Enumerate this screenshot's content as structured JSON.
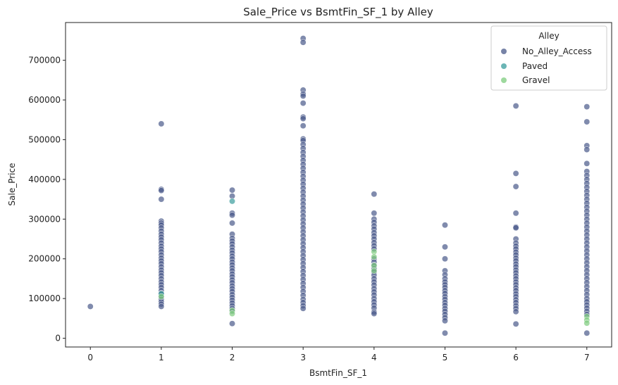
{
  "chart_data": {
    "type": "scatter",
    "title": "Sale_Price vs BsmtFin_SF_1 by Alley",
    "xlabel": "BsmtFin_SF_1",
    "ylabel": "Sale_Price",
    "xlim": [
      -0.35,
      7.35
    ],
    "ylim": [
      -22000,
      795000
    ],
    "x_ticks": [
      0,
      1,
      2,
      3,
      4,
      5,
      6,
      7
    ],
    "y_ticks": [
      0,
      100000,
      200000,
      300000,
      400000,
      500000,
      600000,
      700000
    ],
    "grid": false,
    "legend": {
      "title": "Alley",
      "placement": "top-right"
    },
    "series": [
      {
        "name": "No_Alley_Access",
        "color": "#4a5a8a",
        "points": [
          [
            0,
            80000
          ],
          [
            1,
            540000
          ],
          [
            1,
            375000
          ],
          [
            1,
            372000
          ],
          [
            1,
            350000
          ],
          [
            1,
            295000
          ],
          [
            1,
            290000
          ],
          [
            1,
            285000
          ],
          [
            1,
            278000
          ],
          [
            1,
            270000
          ],
          [
            1,
            262000
          ],
          [
            1,
            255000
          ],
          [
            1,
            248000
          ],
          [
            1,
            240000
          ],
          [
            1,
            232000
          ],
          [
            1,
            225000
          ],
          [
            1,
            218000
          ],
          [
            1,
            210000
          ],
          [
            1,
            202000
          ],
          [
            1,
            195000
          ],
          [
            1,
            188000
          ],
          [
            1,
            180000
          ],
          [
            1,
            172000
          ],
          [
            1,
            165000
          ],
          [
            1,
            158000
          ],
          [
            1,
            150000
          ],
          [
            1,
            142000
          ],
          [
            1,
            135000
          ],
          [
            1,
            128000
          ],
          [
            1,
            120000
          ],
          [
            1,
            113000
          ],
          [
            1,
            105000
          ],
          [
            1,
            98000
          ],
          [
            1,
            92000
          ],
          [
            1,
            86000
          ],
          [
            1,
            80000
          ],
          [
            2,
            373000
          ],
          [
            2,
            358000
          ],
          [
            2,
            315000
          ],
          [
            2,
            310000
          ],
          [
            2,
            290000
          ],
          [
            2,
            262000
          ],
          [
            2,
            252000
          ],
          [
            2,
            245000
          ],
          [
            2,
            238000
          ],
          [
            2,
            230000
          ],
          [
            2,
            222000
          ],
          [
            2,
            215000
          ],
          [
            2,
            207000
          ],
          [
            2,
            200000
          ],
          [
            2,
            192000
          ],
          [
            2,
            185000
          ],
          [
            2,
            177000
          ],
          [
            2,
            170000
          ],
          [
            2,
            162000
          ],
          [
            2,
            155000
          ],
          [
            2,
            147000
          ],
          [
            2,
            140000
          ],
          [
            2,
            132000
          ],
          [
            2,
            125000
          ],
          [
            2,
            118000
          ],
          [
            2,
            110000
          ],
          [
            2,
            103000
          ],
          [
            2,
            96000
          ],
          [
            2,
            89000
          ],
          [
            2,
            82000
          ],
          [
            2,
            75000
          ],
          [
            2,
            68000
          ],
          [
            2,
            37000
          ],
          [
            3,
            755000
          ],
          [
            3,
            745000
          ],
          [
            3,
            625000
          ],
          [
            3,
            615000
          ],
          [
            3,
            610000
          ],
          [
            3,
            592000
          ],
          [
            3,
            557000
          ],
          [
            3,
            553000
          ],
          [
            3,
            535000
          ],
          [
            3,
            502000
          ],
          [
            3,
            498000
          ],
          [
            3,
            488000
          ],
          [
            3,
            478000
          ],
          [
            3,
            468000
          ],
          [
            3,
            458000
          ],
          [
            3,
            448000
          ],
          [
            3,
            438000
          ],
          [
            3,
            428000
          ],
          [
            3,
            418000
          ],
          [
            3,
            408000
          ],
          [
            3,
            398000
          ],
          [
            3,
            388000
          ],
          [
            3,
            378000
          ],
          [
            3,
            368000
          ],
          [
            3,
            358000
          ],
          [
            3,
            348000
          ],
          [
            3,
            338000
          ],
          [
            3,
            328000
          ],
          [
            3,
            318000
          ],
          [
            3,
            308000
          ],
          [
            3,
            298000
          ],
          [
            3,
            288000
          ],
          [
            3,
            278000
          ],
          [
            3,
            268000
          ],
          [
            3,
            258000
          ],
          [
            3,
            248000
          ],
          [
            3,
            238000
          ],
          [
            3,
            228000
          ],
          [
            3,
            218000
          ],
          [
            3,
            208000
          ],
          [
            3,
            198000
          ],
          [
            3,
            188000
          ],
          [
            3,
            178000
          ],
          [
            3,
            168000
          ],
          [
            3,
            158000
          ],
          [
            3,
            148000
          ],
          [
            3,
            138000
          ],
          [
            3,
            128000
          ],
          [
            3,
            118000
          ],
          [
            3,
            108000
          ],
          [
            3,
            98000
          ],
          [
            3,
            90000
          ],
          [
            3,
            82000
          ],
          [
            3,
            75000
          ],
          [
            4,
            363000
          ],
          [
            4,
            315000
          ],
          [
            4,
            300000
          ],
          [
            4,
            292000
          ],
          [
            4,
            283000
          ],
          [
            4,
            275000
          ],
          [
            4,
            266000
          ],
          [
            4,
            258000
          ],
          [
            4,
            250000
          ],
          [
            4,
            241000
          ],
          [
            4,
            233000
          ],
          [
            4,
            225000
          ],
          [
            4,
            200000
          ],
          [
            4,
            192000
          ],
          [
            4,
            184000
          ],
          [
            4,
            175000
          ],
          [
            4,
            167000
          ],
          [
            4,
            159000
          ],
          [
            4,
            150000
          ],
          [
            4,
            142000
          ],
          [
            4,
            134000
          ],
          [
            4,
            125000
          ],
          [
            4,
            117000
          ],
          [
            4,
            109000
          ],
          [
            4,
            100000
          ],
          [
            4,
            92000
          ],
          [
            4,
            84000
          ],
          [
            4,
            76000
          ],
          [
            4,
            66000
          ],
          [
            4,
            62000
          ],
          [
            5,
            285000
          ],
          [
            5,
            230000
          ],
          [
            5,
            200000
          ],
          [
            5,
            170000
          ],
          [
            5,
            160000
          ],
          [
            5,
            150000
          ],
          [
            5,
            142000
          ],
          [
            5,
            135000
          ],
          [
            5,
            128000
          ],
          [
            5,
            120000
          ],
          [
            5,
            113000
          ],
          [
            5,
            105000
          ],
          [
            5,
            98000
          ],
          [
            5,
            90000
          ],
          [
            5,
            83000
          ],
          [
            5,
            75000
          ],
          [
            5,
            68000
          ],
          [
            5,
            60000
          ],
          [
            5,
            52000
          ],
          [
            5,
            44000
          ],
          [
            5,
            13000
          ],
          [
            6,
            585000
          ],
          [
            6,
            415000
          ],
          [
            6,
            382000
          ],
          [
            6,
            315000
          ],
          [
            6,
            280000
          ],
          [
            6,
            278000
          ],
          [
            6,
            250000
          ],
          [
            6,
            240000
          ],
          [
            6,
            232000
          ],
          [
            6,
            225000
          ],
          [
            6,
            217000
          ],
          [
            6,
            210000
          ],
          [
            6,
            202000
          ],
          [
            6,
            195000
          ],
          [
            6,
            187000
          ],
          [
            6,
            180000
          ],
          [
            6,
            172000
          ],
          [
            6,
            165000
          ],
          [
            6,
            157000
          ],
          [
            6,
            150000
          ],
          [
            6,
            142000
          ],
          [
            6,
            135000
          ],
          [
            6,
            127000
          ],
          [
            6,
            120000
          ],
          [
            6,
            112000
          ],
          [
            6,
            105000
          ],
          [
            6,
            97000
          ],
          [
            6,
            90000
          ],
          [
            6,
            82000
          ],
          [
            6,
            75000
          ],
          [
            6,
            67000
          ],
          [
            6,
            36000
          ],
          [
            7,
            583000
          ],
          [
            7,
            545000
          ],
          [
            7,
            485000
          ],
          [
            7,
            475000
          ],
          [
            7,
            440000
          ],
          [
            7,
            420000
          ],
          [
            7,
            410000
          ],
          [
            7,
            400000
          ],
          [
            7,
            390000
          ],
          [
            7,
            380000
          ],
          [
            7,
            370000
          ],
          [
            7,
            360000
          ],
          [
            7,
            350000
          ],
          [
            7,
            340000
          ],
          [
            7,
            330000
          ],
          [
            7,
            320000
          ],
          [
            7,
            310000
          ],
          [
            7,
            300000
          ],
          [
            7,
            290000
          ],
          [
            7,
            280000
          ],
          [
            7,
            270000
          ],
          [
            7,
            260000
          ],
          [
            7,
            250000
          ],
          [
            7,
            240000
          ],
          [
            7,
            230000
          ],
          [
            7,
            220000
          ],
          [
            7,
            210000
          ],
          [
            7,
            200000
          ],
          [
            7,
            190000
          ],
          [
            7,
            180000
          ],
          [
            7,
            170000
          ],
          [
            7,
            160000
          ],
          [
            7,
            150000
          ],
          [
            7,
            140000
          ],
          [
            7,
            130000
          ],
          [
            7,
            120000
          ],
          [
            7,
            110000
          ],
          [
            7,
            100000
          ],
          [
            7,
            92000
          ],
          [
            7,
            84000
          ],
          [
            7,
            76000
          ],
          [
            7,
            68000
          ],
          [
            7,
            60000
          ],
          [
            7,
            13000
          ]
        ]
      },
      {
        "name": "Paved",
        "color": "#3a9c9c",
        "points": [
          [
            2,
            345000
          ],
          [
            1,
            112000
          ]
        ]
      },
      {
        "name": "Gravel",
        "color": "#7dcc7d",
        "points": [
          [
            1,
            105000
          ],
          [
            2,
            70000
          ],
          [
            2,
            62000
          ],
          [
            4,
            218000
          ],
          [
            4,
            205000
          ],
          [
            4,
            183000
          ],
          [
            4,
            170000
          ],
          [
            7,
            55000
          ],
          [
            7,
            46000
          ],
          [
            7,
            38000
          ]
        ]
      }
    ]
  }
}
